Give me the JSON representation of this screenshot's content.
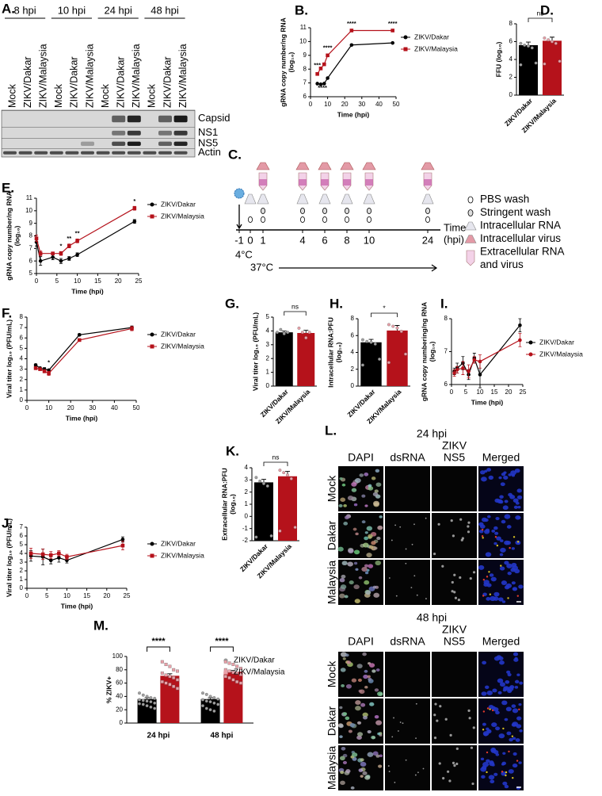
{
  "blot": {
    "panel": "A.",
    "groups": [
      "8 hpi",
      "10 hpi",
      "24 hpi",
      "48 hpi"
    ],
    "lanes": [
      "Mock",
      "ZIKV/Dakar",
      "ZIKV/Malaysia",
      "Mock",
      "ZIKV/Dakar",
      "ZIKV/Malaysia",
      "Mock",
      "ZIKV/Dakar",
      "ZIKV/Malaysia",
      "Mock",
      "ZIKV/Dakar",
      "ZIKV/Malaysia"
    ],
    "bands": [
      "Capsid",
      "NS1",
      "NS5",
      "Actin"
    ]
  },
  "timeline": {
    "panel": "C.",
    "times": [
      "-1",
      "0",
      "1",
      "4",
      "6",
      "8",
      "10",
      "24"
    ],
    "axis_label": [
      "Time",
      "(hpi)"
    ],
    "temperatures": [
      "4°C",
      "37°C"
    ],
    "legend": [
      "PBS wash",
      "Stringent wash",
      "Intracellular RNA",
      "Intracellular virus",
      "Extracellular RNA",
      "and virus"
    ]
  },
  "micrographs": {
    "panel": "L.",
    "column_colors": [
      "#2f6fd8",
      "#2aa84a",
      "#d41c1c",
      "#000000"
    ],
    "blocks": [
      {
        "title": "24 hpi",
        "columns": [
          "DAPI",
          "dsRNA",
          [
            "ZIKV",
            "NS5"
          ],
          "Merged"
        ],
        "rows": [
          "Mock",
          "Dakar",
          "Malaysia"
        ]
      },
      {
        "title": "48 hpi",
        "columns": [
          "DAPI",
          "dsRNA",
          [
            "ZIKV",
            "NS5"
          ],
          "Merged"
        ],
        "rows": [
          "Mock",
          "Dakar",
          "Malaysia"
        ]
      }
    ]
  },
  "chart_data": [
    {
      "panel": "B.",
      "type": "line",
      "x_label": "Time (hpi)",
      "y_label": [
        "gRNA copy number/ng RNA",
        "(log₁₀)"
      ],
      "x": [
        4,
        6,
        8,
        10,
        24,
        48
      ],
      "xlim": [
        0,
        50
      ],
      "xticks": [
        0,
        10,
        20,
        30,
        40,
        50
      ],
      "ylim": [
        6,
        11
      ],
      "yticks": [
        6,
        7,
        8,
        9,
        10,
        11
      ],
      "series": [
        {
          "name": "ZIKV/Dakar",
          "color": "#000000",
          "marker": "circle",
          "values": [
            6.95,
            6.9,
            6.95,
            7.35,
            9.75,
            9.9
          ]
        },
        {
          "name": "ZIKV/Malaysia",
          "color": "#b5121b",
          "marker": "square",
          "values": [
            7.65,
            8.05,
            8.35,
            9.0,
            10.8,
            10.8
          ]
        }
      ],
      "annotations": [
        {
          "text": "***",
          "x": 4,
          "y": 8.1
        },
        {
          "text": "****",
          "x": 7,
          "y": 6.45
        },
        {
          "text": "****",
          "x": 10,
          "y": 9.35
        },
        {
          "text": "****",
          "x": 24,
          "y": 11.1
        },
        {
          "text": "****",
          "x": 48,
          "y": 11.1
        }
      ]
    },
    {
      "panel": "D.",
      "type": "bar",
      "y_label": [
        "FFU (log₁₀)"
      ],
      "categories": [
        "ZIKV/Dakar",
        "ZIKV/Malaysia"
      ],
      "values": [
        5.6,
        6.1
      ],
      "errors": [
        0.35,
        0.4
      ],
      "colors": [
        "#000000",
        "#b5121b"
      ],
      "point_colors": [
        "#a0a0a0",
        "#e8a0a8"
      ],
      "points": [
        [
          5.8,
          5.6,
          5.5,
          5.3,
          3.6,
          3.4
        ],
        [
          6.4,
          6.2,
          6.0,
          5.8,
          3.8,
          3.5
        ]
      ],
      "ylim": [
        0,
        8
      ],
      "yticks": [
        0,
        2,
        4,
        6,
        8
      ],
      "annotation": "ns"
    },
    {
      "panel": "E.",
      "type": "line",
      "x_label": "Time (hpi)",
      "y_label": [
        "gRNA copy number/ng RNA",
        "(log₁₀)"
      ],
      "x": [
        0,
        1,
        4,
        6,
        8,
        10,
        24
      ],
      "xlim": [
        0,
        25
      ],
      "xticks": [
        0,
        5,
        10,
        15,
        20,
        25
      ],
      "ylim": [
        5,
        11
      ],
      "yticks": [
        5,
        6,
        7,
        8,
        9,
        10,
        11
      ],
      "series": [
        {
          "name": "ZIKV/Dakar",
          "color": "#000000",
          "marker": "circle",
          "values": [
            7.5,
            6.0,
            6.3,
            6.0,
            6.2,
            6.5,
            9.15
          ],
          "errors": [
            0.3,
            0.35,
            0.2,
            0.2,
            0.15,
            0.15,
            0.15
          ]
        },
        {
          "name": "ZIKV/Malaysia",
          "color": "#b5121b",
          "marker": "square",
          "values": [
            7.8,
            6.6,
            6.6,
            6.6,
            7.2,
            7.6,
            10.2
          ],
          "errors": [
            0.25,
            0.2,
            0.1,
            0.15,
            0.15,
            0.15,
            0.15
          ]
        }
      ],
      "annotations": [
        {
          "text": "*",
          "x": 6,
          "y": 7.0
        },
        {
          "text": "**",
          "x": 8,
          "y": 7.6
        },
        {
          "text": "**",
          "x": 10,
          "y": 8.0
        },
        {
          "text": "*",
          "x": 24,
          "y": 10.55
        }
      ]
    },
    {
      "panel": "F.",
      "type": "line",
      "x_label": "Time (hpi)",
      "y_label": [
        "Viral titer log₁₀ (PFU/mL)"
      ],
      "x": [
        4,
        6,
        8,
        10,
        24,
        48
      ],
      "xlim": [
        0,
        50
      ],
      "xticks": [
        0,
        10,
        20,
        30,
        40,
        50
      ],
      "ylim": [
        0,
        8
      ],
      "yticks": [
        0,
        1,
        2,
        3,
        4,
        5,
        6,
        7,
        8
      ],
      "series": [
        {
          "name": "ZIKV/Dakar",
          "color": "#000000",
          "marker": "circle",
          "values": [
            3.4,
            3.1,
            3.0,
            2.9,
            6.3,
            7.0
          ],
          "errors": [
            0.1,
            0.1,
            0.15,
            0.1,
            0.1,
            0.15
          ]
        },
        {
          "name": "ZIKV/Malaysia",
          "color": "#b5121b",
          "marker": "square",
          "values": [
            3.1,
            3.0,
            2.8,
            2.6,
            5.8,
            6.9
          ],
          "errors": [
            0.15,
            0.1,
            0.15,
            0.2,
            0.1,
            0.2
          ]
        }
      ],
      "annotations": [
        {
          "text": "*",
          "x": 10,
          "y": 3.4
        }
      ]
    },
    {
      "panel": "G.",
      "type": "bar",
      "y_label": [
        "Viral titer log₁₀ (PFU/mL)"
      ],
      "categories": [
        "ZIKV/Dakar",
        "ZIKV/Malaysia"
      ],
      "values": [
        3.9,
        3.85
      ],
      "errors": [
        0.1,
        0.2
      ],
      "colors": [
        "#000000",
        "#b5121b"
      ],
      "point_colors": [
        "#a0a0a0",
        "#e8a0a8"
      ],
      "points": [
        [
          3.9,
          4.1,
          3.8,
          3.9
        ],
        [
          4.2,
          3.9,
          3.5,
          3.9
        ]
      ],
      "ylim": [
        0,
        5
      ],
      "yticks": [
        0,
        1,
        2,
        3,
        4,
        5
      ],
      "annotation": "ns"
    },
    {
      "panel": "H.",
      "type": "bar",
      "y_label": [
        "Intracellular RNA:PFU",
        "(log₁₀)"
      ],
      "categories": [
        "ZIKV/Dakar",
        "ZIKV/Malaysia"
      ],
      "values": [
        5.2,
        6.6
      ],
      "errors": [
        0.35,
        0.6
      ],
      "colors": [
        "#000000",
        "#b5121b"
      ],
      "point_colors": [
        "#a0a0a0",
        "#e8a0a8"
      ],
      "points": [
        [
          5.5,
          5.3,
          5.2,
          5.0,
          3.2,
          2.5
        ],
        [
          7.3,
          7.1,
          6.9,
          6.5,
          3.8,
          2.8
        ]
      ],
      "ylim": [
        0,
        8
      ],
      "yticks": [
        0,
        2,
        4,
        6,
        8
      ],
      "annotation": "*"
    },
    {
      "panel": "I.",
      "type": "line",
      "x_label": "Time (hpi)",
      "y_label": [
        "gRNA copy numbering/ng RNA",
        "(log₁₀)"
      ],
      "x": [
        1,
        2,
        4,
        6,
        8,
        10,
        24
      ],
      "xlim": [
        0,
        25
      ],
      "xticks": [
        0,
        5,
        10,
        15,
        20,
        25
      ],
      "ylim": [
        6,
        8
      ],
      "yticks": [
        6,
        7,
        8
      ],
      "series": [
        {
          "name": "ZIKV/Dakar",
          "color": "#000000",
          "marker": "circle",
          "values": [
            6.4,
            6.5,
            6.65,
            6.3,
            6.8,
            6.3,
            7.8
          ],
          "errors": [
            0.1,
            0.15,
            0.2,
            0.15,
            0.15,
            0.4,
            0.2
          ]
        },
        {
          "name": "ZIKV/Malaysia",
          "color": "#b5121b",
          "marker": "circle",
          "values": [
            6.35,
            6.45,
            6.5,
            6.4,
            6.75,
            6.7,
            7.35
          ],
          "errors": [
            0.1,
            0.1,
            0.2,
            0.2,
            0.1,
            0.2,
            0.2
          ]
        }
      ]
    },
    {
      "panel": "J.",
      "type": "line",
      "x_label": "Time (hpi)",
      "y_label": [
        "Viral titer log₁₀ (PFU/mL)"
      ],
      "x": [
        1,
        4,
        6,
        8,
        10,
        24
      ],
      "xlim": [
        0,
        25
      ],
      "xticks": [
        0,
        5,
        10,
        15,
        20,
        25
      ],
      "ylim": [
        0,
        7
      ],
      "yticks": [
        0,
        1,
        2,
        3,
        4,
        5,
        6,
        7
      ],
      "series": [
        {
          "name": "ZIKV/Dakar",
          "color": "#000000",
          "marker": "circle",
          "values": [
            3.7,
            3.6,
            3.2,
            3.5,
            3.2,
            5.6
          ],
          "errors": [
            0.6,
            0.9,
            0.4,
            0.5,
            0.3,
            0.3
          ]
        },
        {
          "name": "ZIKV/Malaysia",
          "color": "#b5121b",
          "marker": "square",
          "values": [
            4.0,
            3.9,
            3.8,
            4.0,
            3.6,
            4.9
          ],
          "errors": [
            0.6,
            0.6,
            0.4,
            0.3,
            0.3,
            0.5
          ]
        }
      ]
    },
    {
      "panel": "K.",
      "type": "bar",
      "y_label": [
        "Extracellular RNA:PFU",
        "(log₁₀)"
      ],
      "categories": [
        "ZIKV/Dakar",
        "ZIKV/Malaysia"
      ],
      "values": [
        2.8,
        3.3
      ],
      "errors": [
        0.25,
        0.4
      ],
      "colors": [
        "#000000",
        "#b5121b"
      ],
      "point_colors": [
        "#a0a0a0",
        "#e8a0a8"
      ],
      "points": [
        [
          3.2,
          2.9,
          2.7,
          2.5,
          -1.6,
          -1.7
        ],
        [
          3.8,
          3.6,
          3.4,
          3.1,
          -0.9,
          -1.2
        ]
      ],
      "ylim": [
        -2,
        4
      ],
      "yticks": [
        -2,
        -1,
        0,
        1,
        2,
        3,
        4
      ],
      "annotation": "ns"
    },
    {
      "panel": "M.",
      "type": "bar",
      "y_label": [
        "% ZIKV+"
      ],
      "categories": [
        "24 hpi",
        "48 hpi"
      ],
      "series": [
        {
          "name": "ZIKV/Dakar",
          "color": "#000000",
          "point_color": "#a0a0a0",
          "marker": "circle",
          "values": [
            36,
            36
          ],
          "errors": [
            2,
            2
          ],
          "points": [
            [
              45,
              42,
              40,
              38,
              37,
              35,
              34,
              33,
              32,
              30,
              29,
              28,
              26,
              24,
              22
            ],
            [
              45,
              43,
              40,
              38,
              36,
              35,
              33,
              32,
              30,
              28,
              26,
              22,
              20,
              18
            ]
          ]
        },
        {
          "name": "ZIKV/Malaysia",
          "color": "#b5121b",
          "point_color": "#e8a0a8",
          "marker": "square",
          "values": [
            71,
            77
          ],
          "errors": [
            3,
            2
          ],
          "points": [
            [
              92,
              88,
              85,
              80,
              78,
              75,
              72,
              70,
              68,
              65,
              62,
              60,
              58,
              55,
              52
            ],
            [
              92,
              90,
              88,
              85,
              82,
              80,
              78,
              76,
              75,
              73,
              70,
              68,
              65,
              62,
              60
            ]
          ]
        }
      ],
      "ylim": [
        0,
        100
      ],
      "yticks": [
        0,
        20,
        40,
        60,
        80,
        100
      ],
      "annotations": [
        "****",
        "****"
      ]
    }
  ]
}
